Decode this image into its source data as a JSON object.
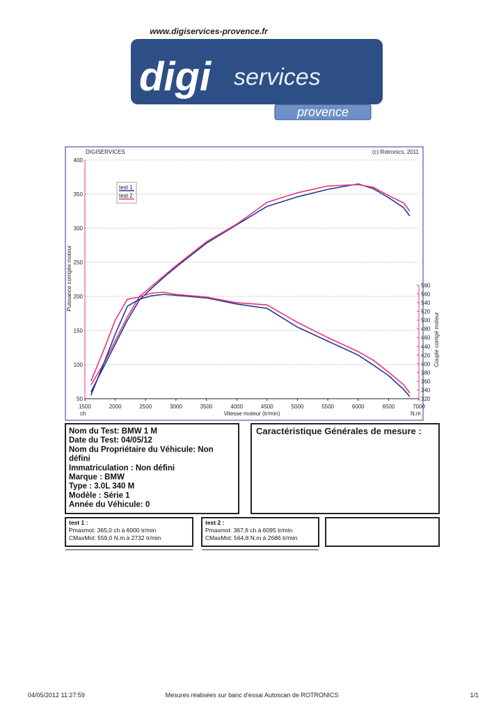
{
  "header": {
    "url": "www.digiservices-provence.fr",
    "logo_main": "digi",
    "logo_sub": "services",
    "logo_region": "provence"
  },
  "chart_data": {
    "type": "line",
    "title": "DIGISERVICES",
    "subtitle": "(c) Rotronics, 2011",
    "x_label": "Vitesse moteur (tr/min)",
    "y_label": "Puissance corrigée moteur",
    "y2_label": "Couple corrigé moteur",
    "y_unit": "ch",
    "y2_unit": "N.m",
    "x": [
      1600,
      1800,
      2000,
      2200,
      2400,
      2600,
      2800,
      3000,
      3500,
      4000,
      4500,
      5000,
      5500,
      6000,
      6250,
      6500,
      6750,
      6850
    ],
    "xlim": [
      1500,
      7000
    ],
    "xticks": [
      1500,
      2000,
      2500,
      3000,
      3500,
      4000,
      4500,
      5000,
      5500,
      6000,
      6500,
      7000
    ],
    "ylim": [
      50,
      400
    ],
    "yticks": [
      50,
      100,
      150,
      200,
      250,
      300,
      350,
      400
    ],
    "y2lim": [
      320,
      867
    ],
    "y2ticks": [
      320,
      340,
      360,
      380,
      400,
      420,
      440,
      460,
      480,
      500,
      520,
      540,
      560,
      580
    ],
    "grid": true,
    "legend": "upper-left",
    "series": [
      {
        "name": "test 1",
        "color": "#1f3a93",
        "values": [
          60,
          95,
          130,
          165,
          195,
          212,
          228,
          243,
          278,
          305,
          332,
          346,
          357,
          365,
          358,
          345,
          330,
          318
        ]
      },
      {
        "name": "test 2",
        "color": "#e8337a",
        "values": [
          70,
          100,
          135,
          170,
          200,
          215,
          230,
          245,
          280,
          306,
          338,
          352,
          362,
          364,
          360,
          348,
          337,
          325
        ]
      },
      {
        "name": "test 1",
        "color": "#1f3a93",
        "axis": "y2",
        "values": [
          328,
          397,
          468,
          532,
          548,
          556,
          559,
          557,
          551,
          537,
          527,
          484,
          452,
          420,
          397,
          373,
          341,
          325
        ]
      },
      {
        "name": "test 2",
        "color": "#e8337a",
        "axis": "y2",
        "values": [
          360,
          428,
          500,
          548,
          553,
          562,
          564,
          559,
          553,
          540,
          535,
          495,
          460,
          428,
          408,
          381,
          352,
          333
        ]
      }
    ]
  },
  "info": {
    "lines": [
      "Nom du Test: BMW 1 M",
      "Date du Test: 04/05/12",
      "Nom du Propriétaire du Véhicule: Non",
      "défini",
      "Immatriculation  : Non défini",
      "Marque  : BMW",
      "Type  : 3.0L 340 M",
      "Modèle  : Série 1",
      "Année du Véhicule: 0"
    ],
    "title": "Caractéristique Générales de mesure :"
  },
  "results": [
    {
      "title": "test 1 :",
      "lines": [
        "Pmaxmot: 365,0 ch à 6000 tr/min",
        "CMaxMot: 559,0 N.m à 2732 tr/min"
      ]
    },
    {
      "title": "test 2 :",
      "lines": [
        "Pmaxmot: 367,6 ch à 6095 tr/min",
        "CMaxMot: 564,8 N.m à 2686 tr/min"
      ]
    }
  ],
  "footer": {
    "date": "04/05/2012 11:27:59",
    "text": "Mesures réalisées sur banc d'essai Autoscan de ROTRONICS",
    "page": "1/1"
  }
}
